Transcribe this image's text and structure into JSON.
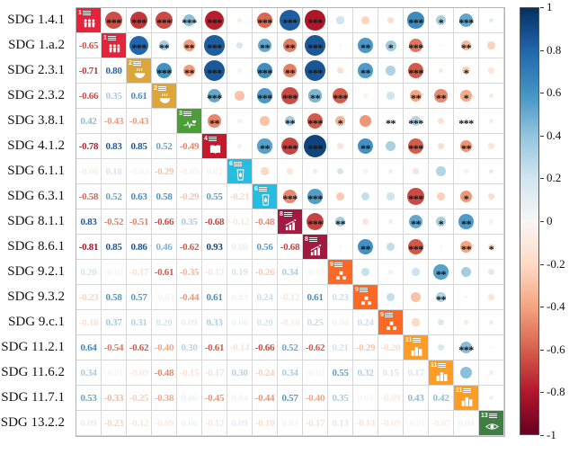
{
  "chart_data": {
    "type": "heatmap",
    "subtype": "correlation-matrix",
    "description": "Pairwise correlation matrix of SDG indicators; upper triangle shows colored circles sized/colored by correlation with significance stars, lower triangle shows correlation coefficients, diagonal shows SDG goal icons.",
    "row_labels": [
      "SDG 1.4.1",
      "SDG 1.a.2",
      "SDG 2.3.1",
      "SDG 2.3.2",
      "SDG 3.8.1",
      "SDG 4.1.2",
      "SDG 6.1.1",
      "SDG 6.3.1",
      "SDG 8.1.1",
      "SDG 8.6.1",
      "SDG 9.2.1",
      "SDG 9.3.2",
      "SDG 9.c.1",
      "SDG 11.2.1",
      "SDG 11.6.2",
      "SDG 11.7.1",
      "SDG 13.2.2"
    ],
    "diagonal_icons": [
      {
        "goal": "1",
        "glyph": "people",
        "color": "#E5243B",
        "title": "NO POVERTY"
      },
      {
        "goal": "1",
        "glyph": "people",
        "color": "#E5243B",
        "title": "NO POVERTY"
      },
      {
        "goal": "2",
        "glyph": "bowl",
        "color": "#DDA63A",
        "title": "ZERO HUNGER"
      },
      {
        "goal": "2",
        "glyph": "bowl",
        "color": "#DDA63A",
        "title": "ZERO HUNGER"
      },
      {
        "goal": "3",
        "glyph": "heartbeat",
        "color": "#4C9F38",
        "title": "GOOD HEALTH AND WELL-BEING"
      },
      {
        "goal": "4",
        "glyph": "book",
        "color": "#C5192D",
        "title": "QUALITY EDUCATION"
      },
      {
        "goal": "6",
        "glyph": "water",
        "color": "#26BDE2",
        "title": "CLEAN WATER AND SANITATION"
      },
      {
        "goal": "6",
        "glyph": "water",
        "color": "#26BDE2",
        "title": "CLEAN WATER AND SANITATION"
      },
      {
        "goal": "8",
        "glyph": "chart",
        "color": "#A21942",
        "title": "DECENT WORK AND ECONOMIC GROWTH"
      },
      {
        "goal": "8",
        "glyph": "chart",
        "color": "#A21942",
        "title": "DECENT WORK AND ECONOMIC GROWTH"
      },
      {
        "goal": "9",
        "glyph": "cubes",
        "color": "#FD6925",
        "title": "INDUSTRY, INNOVATION AND INFRASTRUCTURE"
      },
      {
        "goal": "9",
        "glyph": "cubes",
        "color": "#FD6925",
        "title": "INDUSTRY, INNOVATION AND INFRASTRUCTURE"
      },
      {
        "goal": "9",
        "glyph": "cubes",
        "color": "#FD6925",
        "title": "INDUSTRY, INNOVATION AND INFRASTRUCTURE"
      },
      {
        "goal": "11",
        "glyph": "buildings",
        "color": "#FD9D24",
        "title": "SUSTAINABLE CITIES AND COMMUNITIES"
      },
      {
        "goal": "11",
        "glyph": "buildings",
        "color": "#FD9D24",
        "title": "SUSTAINABLE CITIES AND COMMUNITIES"
      },
      {
        "goal": "11",
        "glyph": "buildings",
        "color": "#FD9D24",
        "title": "SUSTAINABLE CITIES AND COMMUNITIES"
      },
      {
        "goal": "13",
        "glyph": "eye",
        "color": "#3F7E44",
        "title": "CLIMATE ACTION"
      }
    ],
    "lower_triangle_values": [
      [
        -0.65
      ],
      [
        -0.71,
        0.8
      ],
      [
        -0.66,
        0.35,
        0.61
      ],
      [
        0.42,
        -0.43,
        -0.43,
        null
      ],
      [
        -0.78,
        0.83,
        0.85,
        0.52,
        -0.49
      ],
      [
        -0.06,
        0.18,
        -0.03,
        -0.29,
        -0.05,
        0.03
      ],
      [
        -0.58,
        0.52,
        0.63,
        0.58,
        -0.29,
        0.55,
        -0.21
      ],
      [
        0.83,
        -0.52,
        -0.51,
        -0.66,
        0.35,
        -0.68,
        -0.12,
        -0.48
      ],
      [
        -0.81,
        0.85,
        0.86,
        0.46,
        -0.62,
        0.93,
        0.08,
        0.56,
        -0.68
      ],
      [
        0.2,
        -0.02,
        -0.17,
        -0.61,
        -0.35,
        -0.12,
        0.19,
        -0.26,
        0.34,
        -0.02
      ],
      [
        -0.23,
        0.58,
        0.57,
        -0.03,
        -0.44,
        0.61,
        0.03,
        0.24,
        -0.12,
        0.61,
        0.23
      ],
      [
        -0.18,
        0.37,
        0.31,
        0.2,
        0.09,
        0.33,
        0.06,
        0.2,
        -0.1,
        0.25,
        0.04,
        0.24
      ],
      [
        0.64,
        -0.54,
        -0.62,
        -0.4,
        0.3,
        -0.61,
        -0.14,
        -0.66,
        0.52,
        -0.62,
        0.21,
        -0.29,
        -0.2
      ],
      [
        0.34,
        -0.01,
        -0.09,
        -0.48,
        -0.15,
        -0.17,
        0.3,
        -0.24,
        0.34,
        -0.02,
        0.55,
        0.32,
        0.15,
        0.17
      ],
      [
        0.53,
        -0.33,
        -0.25,
        -0.38,
        0.06,
        -0.45,
        0.04,
        -0.44,
        0.57,
        -0.4,
        0.35,
        0.01,
        -0.09,
        0.43,
        0.42
      ],
      [
        0.09,
        -0.23,
        -0.12,
        -0.09,
        0.06,
        -0.12,
        0.09,
        -0.19,
        0.03,
        -0.17,
        0.13,
        -0.14,
        -0.09,
        -0.01,
        -0.07,
        0.04
      ]
    ],
    "significance_stars_lower": [
      [
        3
      ],
      [
        3,
        3
      ],
      [
        3,
        2,
        3
      ],
      [
        3,
        2,
        2,
        0
      ],
      [
        3,
        3,
        3,
        3,
        2
      ],
      [
        0,
        0,
        0,
        0,
        0,
        0
      ],
      [
        3,
        2,
        3,
        3,
        0,
        2,
        0
      ],
      [
        3,
        2,
        2,
        3,
        2,
        3,
        0,
        3
      ],
      [
        3,
        3,
        3,
        2,
        3,
        3,
        0,
        3,
        3
      ],
      [
        0,
        0,
        0,
        3,
        1,
        0,
        0,
        0,
        2,
        0
      ],
      [
        0,
        2,
        2,
        0,
        0,
        2,
        0,
        0,
        0,
        2,
        0
      ],
      [
        0,
        1,
        0,
        0,
        2,
        0,
        0,
        0,
        0,
        0,
        0,
        0
      ],
      [
        3,
        3,
        3,
        2,
        3,
        3,
        0,
        3,
        2,
        3,
        0,
        0,
        0
      ],
      [
        1,
        0,
        0,
        2,
        0,
        0,
        0,
        0,
        1,
        0,
        2,
        2,
        0,
        0
      ],
      [
        3,
        2,
        1,
        1,
        3,
        2,
        0,
        1,
        2,
        2,
        0,
        0,
        0,
        3,
        0
      ],
      [
        0,
        0,
        0,
        0,
        0,
        0,
        0,
        0,
        0,
        1,
        0,
        0,
        0,
        0,
        0,
        0
      ]
    ],
    "star_character": "*",
    "colorbar": {
      "position": "right",
      "min": -1,
      "max": 1,
      "tick_labels": [
        "1",
        "0.8",
        "0.6",
        "0.4",
        "0.2",
        "0",
        "-0.2",
        "-0.4",
        "-0.6",
        "-0.8",
        "-1"
      ],
      "tick_values": [
        1,
        0.8,
        0.6,
        0.4,
        0.2,
        0,
        -0.2,
        -0.4,
        -0.6,
        -0.8,
        -1
      ],
      "palette_stops": [
        [
          -1,
          "#67001f"
        ],
        [
          -0.8,
          "#b2182b"
        ],
        [
          -0.6,
          "#d6604d"
        ],
        [
          -0.4,
          "#f4a582"
        ],
        [
          -0.2,
          "#fddbc7"
        ],
        [
          0,
          "#f9f6f4"
        ],
        [
          0.2,
          "#d1e5f0"
        ],
        [
          0.4,
          "#92c5de"
        ],
        [
          0.6,
          "#4393c3"
        ],
        [
          0.8,
          "#2166ac"
        ],
        [
          1,
          "#053061"
        ]
      ]
    },
    "grid": {
      "on": true,
      "line_color": "#d6d6d6",
      "cell_size_px": 28
    }
  }
}
